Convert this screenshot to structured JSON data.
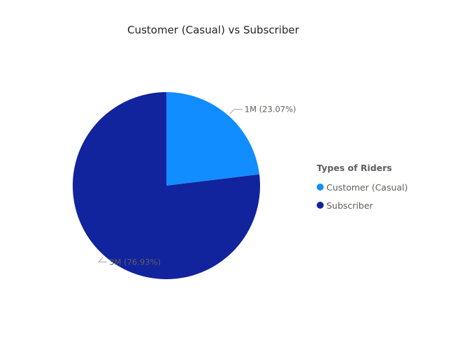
{
  "chart_data": {
    "type": "pie",
    "title": "Customer (Casual) vs Subscriber",
    "legend_title": "Types of Riders",
    "legend_position": "right",
    "slices": [
      {
        "name": "Customer (Casual)",
        "percent": 23.07,
        "label": "1M (23.07%)",
        "color": "#118dff"
      },
      {
        "name": "Subscriber",
        "percent": 76.93,
        "label": "3M (76.93%)",
        "color": "#12239e"
      }
    ]
  }
}
